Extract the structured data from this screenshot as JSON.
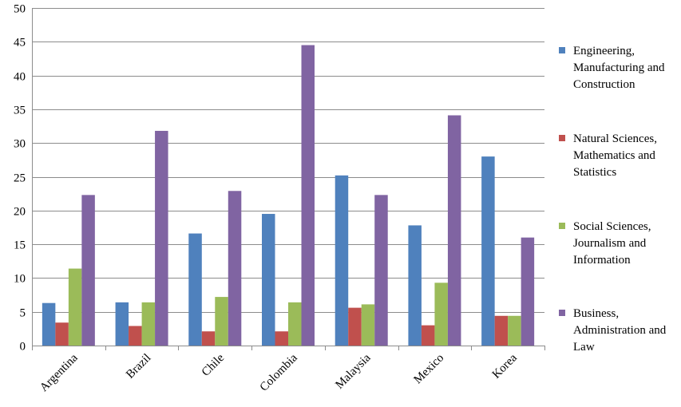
{
  "chart_data": {
    "type": "bar",
    "categories": [
      "Argentina",
      "Brazil",
      "Chile",
      "Colombia",
      "Malaysia",
      "Mexico",
      "Korea"
    ],
    "series": [
      {
        "name": "Engineering, Manufacturing and Construction",
        "name_lines": [
          "Engineering,",
          "Manufacturing and",
          "Construction"
        ],
        "color": "#4f81bd",
        "values": [
          6.3,
          6.4,
          16.6,
          19.5,
          25.2,
          17.8,
          28.0
        ]
      },
      {
        "name": "Natural Sciences, Mathematics and Statistics",
        "name_lines": [
          "Natural Sciences,",
          "Mathematics and",
          "Statistics"
        ],
        "color": "#c0504d",
        "values": [
          3.4,
          2.9,
          2.1,
          2.1,
          5.6,
          3.0,
          4.4
        ]
      },
      {
        "name": "Social Sciences, Journalism and Information",
        "name_lines": [
          "Social Sciences,",
          "Journalism and",
          "Information"
        ],
        "color": "#9bbb59",
        "values": [
          11.4,
          6.4,
          7.2,
          6.4,
          6.1,
          9.3,
          4.4
        ]
      },
      {
        "name": "Business, Administration and Law",
        "name_lines": [
          "Business,",
          "Administration and",
          "Law"
        ],
        "color": "#8064a2",
        "values": [
          22.3,
          31.8,
          22.9,
          44.5,
          22.3,
          34.1,
          16.0
        ]
      }
    ],
    "ylim": [
      0,
      50
    ],
    "yticks": [
      0,
      5,
      10,
      15,
      20,
      25,
      30,
      35,
      40,
      45,
      50
    ],
    "grid": true,
    "legend": "right",
    "xlabel": "",
    "ylabel": "",
    "title": ""
  }
}
